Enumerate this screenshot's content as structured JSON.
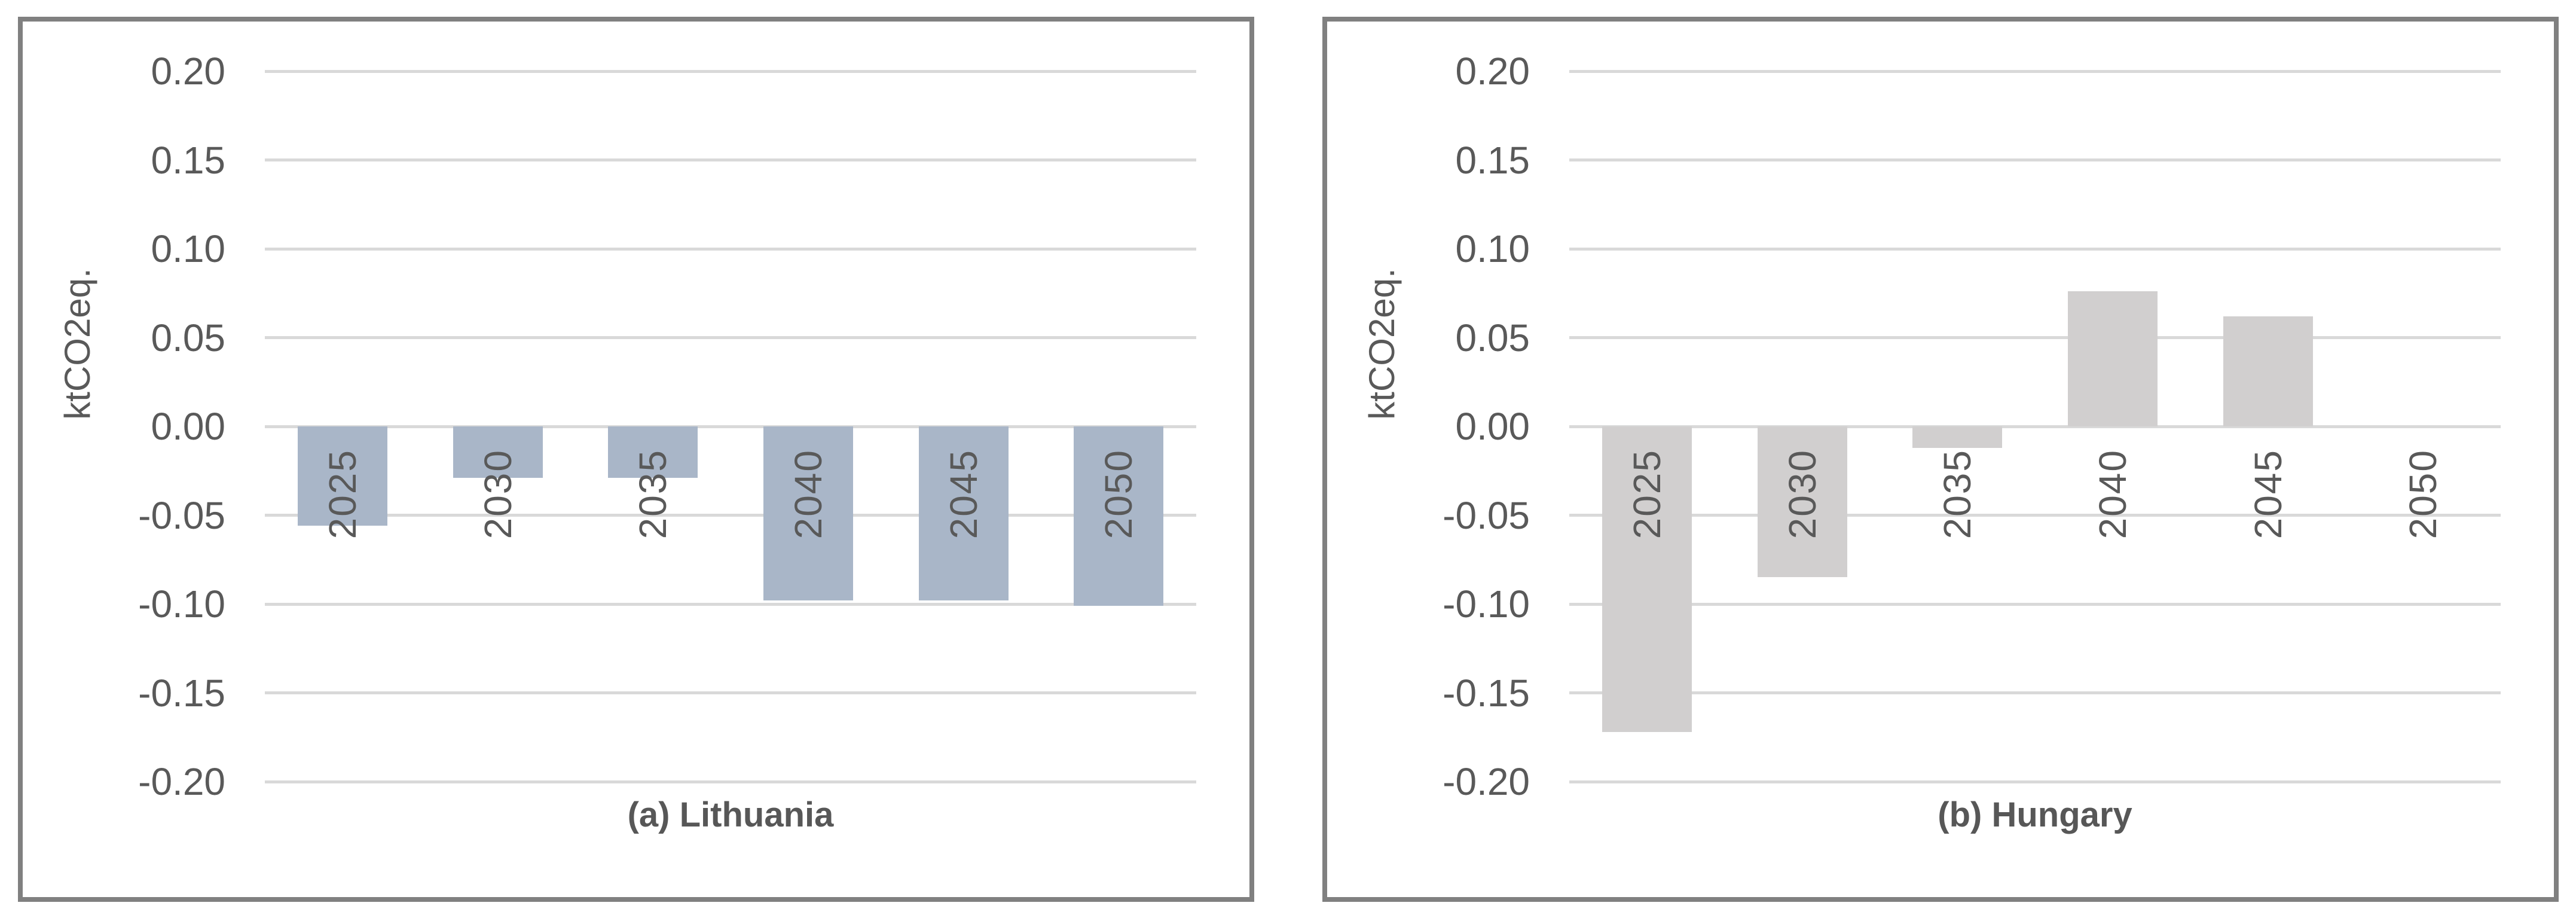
{
  "figure": {
    "background": "#ffffff",
    "panel_border_color": "#808080",
    "gridline_color": "#d9d9d9",
    "text_color": "#595959",
    "title_color": "#575757"
  },
  "chart_data": [
    {
      "type": "bar",
      "title": "(a) Lithuania",
      "ylabel": "ktCO2eq.",
      "categories": [
        "2025",
        "2030",
        "2035",
        "2040",
        "2045",
        "2050"
      ],
      "values": [
        -0.056,
        -0.029,
        -0.029,
        -0.098,
        -0.098,
        -0.101
      ],
      "ylim": [
        -0.2,
        0.2
      ],
      "ytick_step": 0.05,
      "yticks": [
        "0.20",
        "0.15",
        "0.10",
        "0.05",
        "0.00",
        "-0.05",
        "-0.10",
        "-0.15",
        "-0.20"
      ],
      "bar_color": "#a9b6c8",
      "grid": true,
      "legend": "none"
    },
    {
      "type": "bar",
      "title": "(b) Hungary",
      "ylabel": "ktCO2eq.",
      "categories": [
        "2025",
        "2030",
        "2035",
        "2040",
        "2045",
        "2050"
      ],
      "values": [
        -0.172,
        -0.085,
        -0.012,
        0.076,
        0.062,
        0.0
      ],
      "ylim": [
        -0.2,
        0.2
      ],
      "ytick_step": 0.05,
      "yticks": [
        "0.20",
        "0.15",
        "0.10",
        "0.05",
        "0.00",
        "-0.05",
        "-0.10",
        "-0.15",
        "-0.20"
      ],
      "bar_color": "#d1cfcf",
      "grid": true,
      "legend": "none"
    }
  ]
}
